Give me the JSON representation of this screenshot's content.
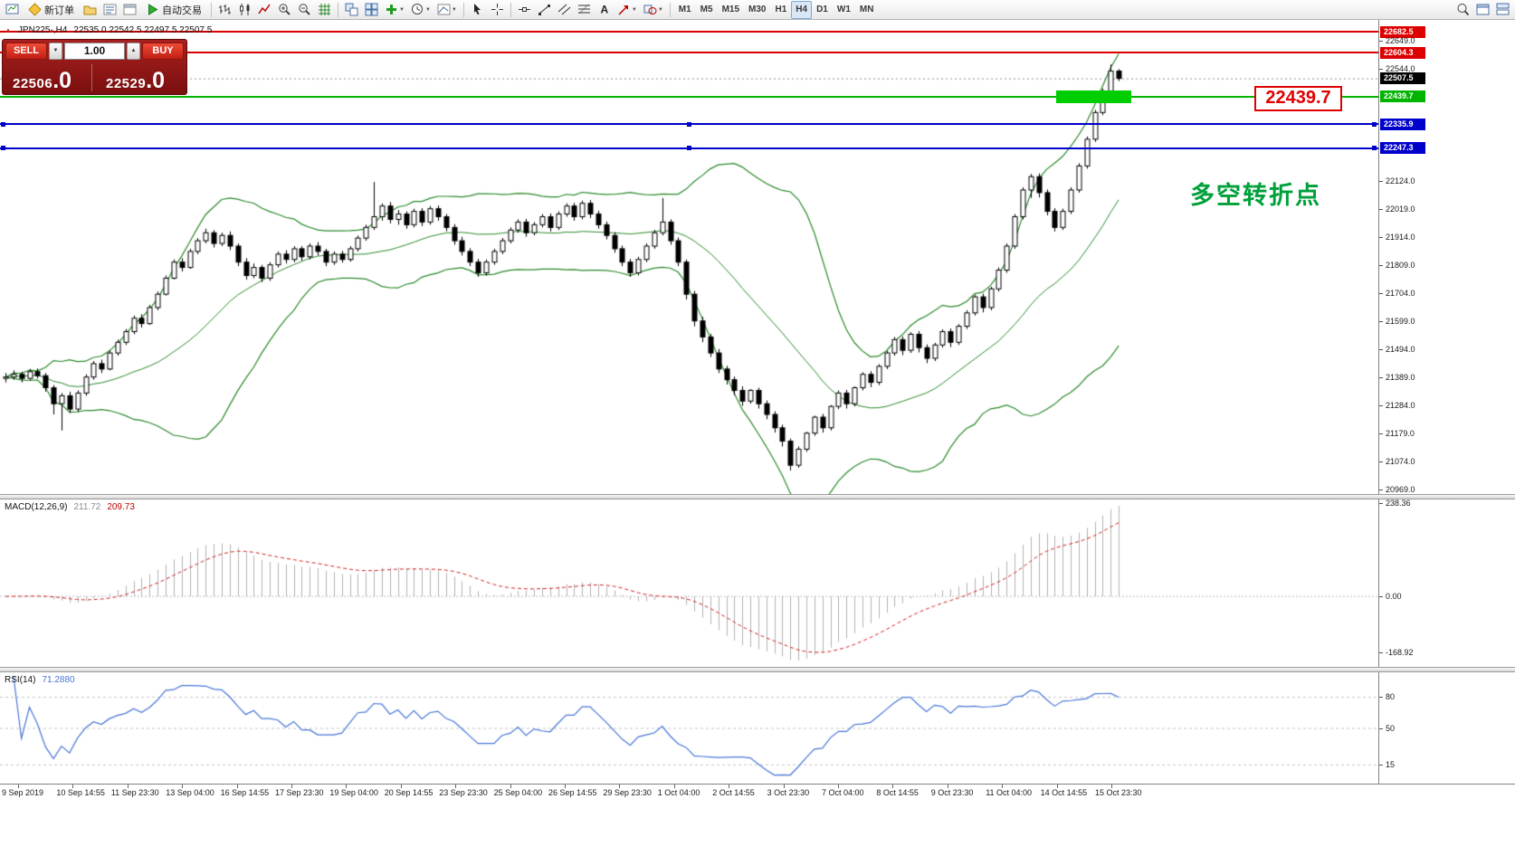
{
  "toolbar": {
    "items": [
      {
        "type": "icon",
        "name": "new-chart-icon"
      },
      {
        "type": "button",
        "name": "new-order-button",
        "icon": "new-order-icon",
        "label": "新订单"
      },
      {
        "type": "icon",
        "name": "profiles-icon"
      },
      {
        "type": "icon",
        "name": "market-watch-icon"
      },
      {
        "type": "icon",
        "name": "data-window-icon"
      },
      {
        "type": "button",
        "name": "autotrade-button",
        "icon": "autotrade-icon",
        "label": "自动交易"
      },
      {
        "type": "sep"
      },
      {
        "type": "icon",
        "name": "bar-chart-icon"
      },
      {
        "type": "icon",
        "name": "candlestick-icon"
      },
      {
        "type": "icon",
        "name": "line-chart-icon"
      },
      {
        "type": "icon",
        "name": "zoom-in-icon"
      },
      {
        "type": "icon",
        "name": "zoom-out-icon"
      },
      {
        "type": "icon",
        "name": "grid-icon"
      },
      {
        "type": "sep"
      },
      {
        "type": "icon",
        "name": "tile-windows-icon"
      },
      {
        "type": "icon",
        "name": "auto-arrange-icon"
      },
      {
        "type": "icon",
        "name": "add-indicator-icon",
        "dd": true
      },
      {
        "type": "icon",
        "name": "period-dropdown-icon",
        "dd": true
      },
      {
        "type": "icon",
        "name": "template-icon",
        "dd": true
      },
      {
        "type": "sep"
      },
      {
        "type": "icon",
        "name": "cursor-icon"
      },
      {
        "type": "icon",
        "name": "crosshair-icon"
      },
      {
        "type": "sep"
      },
      {
        "type": "icon",
        "name": "hline-tool-icon"
      },
      {
        "type": "icon",
        "name": "trendline-tool-icon"
      },
      {
        "type": "icon",
        "name": "channel-tool-icon"
      },
      {
        "type": "icon",
        "name": "fibonacci-tool-icon"
      },
      {
        "type": "icon",
        "name": "text-tool-icon"
      },
      {
        "type": "icon",
        "name": "arrow-tool-icon",
        "dd": true
      },
      {
        "type": "icon",
        "name": "shapes-tool-icon",
        "dd": true
      },
      {
        "type": "sep"
      },
      {
        "type": "tf"
      },
      {
        "type": "spacer"
      },
      {
        "type": "icon",
        "name": "search-icon"
      },
      {
        "type": "icon",
        "name": "new-window-icon"
      },
      {
        "type": "icon",
        "name": "window-list-icon"
      }
    ],
    "timeframes": [
      "M1",
      "M5",
      "M15",
      "M30",
      "H1",
      "H4",
      "D1",
      "W1",
      "MN"
    ],
    "active_timeframe": "H4"
  },
  "one_click": {
    "sell_label": "SELL",
    "buy_label": "BUY",
    "volume": "1.00",
    "volume_up_icon": "▲",
    "volume_down_icon": "▼",
    "sell_price_main": "22506",
    "sell_price_frac": ".0",
    "buy_price_main": "22529",
    "buy_price_frac": ".0"
  },
  "chart": {
    "toggle_icon": "▲",
    "title": "JPN225-,H4",
    "ohlc_text": "22535.0 22542.5 22497.5 22507.5",
    "annotation": "多空转折点",
    "level_label": "22439.7"
  },
  "chart_data": {
    "type": "candlestick",
    "symbol": "JPN225-",
    "timeframe": "H4",
    "current_price": 22507.5,
    "current_price_label": "22507.5",
    "price_axis": {
      "min": 20969.0,
      "max": 22682.5,
      "tick_step": 105,
      "ticks": [
        "22649.0",
        "22544.0",
        "22124.0",
        "22019.0",
        "21914.0",
        "21809.0",
        "21704.0",
        "21599.0",
        "21494.0",
        "21389.0",
        "21284.0",
        "21179.0",
        "21074.0",
        "20969.0"
      ]
    },
    "hlines": [
      {
        "price": 22682.5,
        "badge": "22682.5",
        "color": "#dd0000",
        "selected": false
      },
      {
        "price": 22604.3,
        "badge": "22604.3",
        "color": "#dd0000",
        "selected": false
      },
      {
        "price": 22439.7,
        "badge": "22439.7",
        "color": "#00b400",
        "selected": false
      },
      {
        "price": 22335.9,
        "badge": "22335.9",
        "color": "#0000cc",
        "selected": true
      },
      {
        "price": 22247.3,
        "badge": "22247.3",
        "color": "#0000cc",
        "selected": true
      }
    ],
    "bollinger": {
      "period": 20,
      "deviation": 2,
      "color": "#2a8a2a"
    },
    "candles": [
      [
        21385,
        21405,
        21370,
        21390
      ],
      [
        21390,
        21415,
        21380,
        21400
      ],
      [
        21400,
        21410,
        21370,
        21385
      ],
      [
        21385,
        21420,
        21378,
        21410
      ],
      [
        21410,
        21422,
        21385,
        21395
      ],
      [
        21395,
        21405,
        21335,
        21350
      ],
      [
        21350,
        21360,
        21250,
        21290
      ],
      [
        21290,
        21330,
        21190,
        21320
      ],
      [
        21320,
        21335,
        21255,
        21270
      ],
      [
        21270,
        21340,
        21260,
        21330
      ],
      [
        21330,
        21400,
        21320,
        21390
      ],
      [
        21390,
        21450,
        21380,
        21440
      ],
      [
        21440,
        21455,
        21405,
        21420
      ],
      [
        21420,
        21490,
        21415,
        21480
      ],
      [
        21480,
        21530,
        21470,
        21520
      ],
      [
        21520,
        21570,
        21510,
        21560
      ],
      [
        21560,
        21620,
        21550,
        21610
      ],
      [
        21610,
        21625,
        21575,
        21590
      ],
      [
        21590,
        21660,
        21585,
        21650
      ],
      [
        21650,
        21710,
        21640,
        21700
      ],
      [
        21700,
        21770,
        21695,
        21760
      ],
      [
        21760,
        21830,
        21755,
        21820
      ],
      [
        21820,
        21835,
        21785,
        21800
      ],
      [
        21800,
        21870,
        21795,
        21860
      ],
      [
        21860,
        21910,
        21850,
        21900
      ],
      [
        21900,
        21945,
        21890,
        21930
      ],
      [
        21930,
        21940,
        21875,
        21890
      ],
      [
        21890,
        21930,
        21880,
        21920
      ],
      [
        21920,
        21935,
        21865,
        21880
      ],
      [
        21880,
        21890,
        21805,
        21820
      ],
      [
        21820,
        21835,
        21755,
        21770
      ],
      [
        21770,
        21815,
        21760,
        21800
      ],
      [
        21800,
        21810,
        21745,
        21760
      ],
      [
        21760,
        21820,
        21750,
        21810
      ],
      [
        21810,
        21860,
        21800,
        21850
      ],
      [
        21850,
        21865,
        21815,
        21830
      ],
      [
        21830,
        21880,
        21820,
        21870
      ],
      [
        21870,
        21880,
        21825,
        21840
      ],
      [
        21840,
        21890,
        21830,
        21880
      ],
      [
        21880,
        21895,
        21845,
        21860
      ],
      [
        21860,
        21870,
        21805,
        21820
      ],
      [
        21820,
        21860,
        21810,
        21850
      ],
      [
        21850,
        21862,
        21818,
        21830
      ],
      [
        21830,
        21880,
        21822,
        21870
      ],
      [
        21870,
        21920,
        21860,
        21910
      ],
      [
        21910,
        21960,
        21900,
        21950
      ],
      [
        21950,
        22120,
        21940,
        21990
      ],
      [
        21990,
        22040,
        21975,
        22030
      ],
      [
        22030,
        22045,
        21965,
        21980
      ],
      [
        21980,
        22015,
        21960,
        22000
      ],
      [
        22000,
        22010,
        21945,
        21960
      ],
      [
        21960,
        22020,
        21950,
        22010
      ],
      [
        22010,
        22022,
        21955,
        21970
      ],
      [
        21970,
        22030,
        21960,
        22020
      ],
      [
        22020,
        22032,
        21975,
        21990
      ],
      [
        21990,
        22000,
        21935,
        21950
      ],
      [
        21950,
        21962,
        21885,
        21900
      ],
      [
        21900,
        21915,
        21845,
        21860
      ],
      [
        21860,
        21872,
        21805,
        21820
      ],
      [
        21820,
        21832,
        21765,
        21780
      ],
      [
        21780,
        21830,
        21770,
        21820
      ],
      [
        21820,
        21870,
        21810,
        21860
      ],
      [
        21860,
        21910,
        21850,
        21900
      ],
      [
        21900,
        21950,
        21890,
        21940
      ],
      [
        21940,
        21980,
        21930,
        21970
      ],
      [
        21970,
        21982,
        21915,
        21930
      ],
      [
        21930,
        21970,
        21920,
        21960
      ],
      [
        21960,
        22000,
        21950,
        21990
      ],
      [
        21990,
        22002,
        21935,
        21950
      ],
      [
        21950,
        22010,
        21940,
        22000
      ],
      [
        22000,
        22040,
        21990,
        22030
      ],
      [
        22030,
        22042,
        21975,
        21990
      ],
      [
        21990,
        22050,
        21980,
        22040
      ],
      [
        22040,
        22052,
        21985,
        22000
      ],
      [
        22000,
        22012,
        21945,
        21960
      ],
      [
        21960,
        21972,
        21905,
        21920
      ],
      [
        21920,
        21932,
        21855,
        21870
      ],
      [
        21870,
        21882,
        21805,
        21820
      ],
      [
        21820,
        21832,
        21765,
        21780
      ],
      [
        21780,
        21840,
        21770,
        21830
      ],
      [
        21830,
        21890,
        21820,
        21880
      ],
      [
        21880,
        21940,
        21870,
        21930
      ],
      [
        21930,
        22060,
        21920,
        21970
      ],
      [
        21970,
        21980,
        21885,
        21900
      ],
      [
        21900,
        21912,
        21805,
        21820
      ],
      [
        21820,
        21830,
        21680,
        21700
      ],
      [
        21700,
        21712,
        21580,
        21600
      ],
      [
        21600,
        21615,
        21520,
        21540
      ],
      [
        21540,
        21552,
        21465,
        21480
      ],
      [
        21480,
        21495,
        21405,
        21420
      ],
      [
        21420,
        21432,
        21362,
        21380
      ],
      [
        21380,
        21392,
        21322,
        21340
      ],
      [
        21340,
        21355,
        21282,
        21300
      ],
      [
        21300,
        21345,
        21290,
        21340
      ],
      [
        21340,
        21350,
        21272,
        21290
      ],
      [
        21290,
        21302,
        21232,
        21250
      ],
      [
        21250,
        21262,
        21182,
        21200
      ],
      [
        21200,
        21212,
        21130,
        21150
      ],
      [
        21150,
        21160,
        21040,
        21060
      ],
      [
        21060,
        21130,
        21050,
        21120
      ],
      [
        21120,
        21185,
        21110,
        21180
      ],
      [
        21180,
        21245,
        21170,
        21240
      ],
      [
        21240,
        21252,
        21182,
        21200
      ],
      [
        21200,
        21285,
        21190,
        21280
      ],
      [
        21280,
        21340,
        21270,
        21330
      ],
      [
        21330,
        21342,
        21272,
        21290
      ],
      [
        21290,
        21355,
        21280,
        21350
      ],
      [
        21350,
        21408,
        21340,
        21400
      ],
      [
        21400,
        21412,
        21352,
        21370
      ],
      [
        21370,
        21438,
        21360,
        21430
      ],
      [
        21430,
        21488,
        21420,
        21480
      ],
      [
        21480,
        21540,
        21470,
        21530
      ],
      [
        21530,
        21542,
        21472,
        21490
      ],
      [
        21490,
        21558,
        21480,
        21550
      ],
      [
        21550,
        21562,
        21482,
        21500
      ],
      [
        21500,
        21512,
        21442,
        21460
      ],
      [
        21460,
        21518,
        21450,
        21510
      ],
      [
        21510,
        21568,
        21500,
        21560
      ],
      [
        21560,
        21572,
        21502,
        21520
      ],
      [
        21520,
        21588,
        21510,
        21580
      ],
      [
        21580,
        21640,
        21570,
        21630
      ],
      [
        21630,
        21698,
        21620,
        21690
      ],
      [
        21690,
        21702,
        21632,
        21650
      ],
      [
        21650,
        21728,
        21640,
        21720
      ],
      [
        21720,
        21800,
        21710,
        21790
      ],
      [
        21790,
        21890,
        21780,
        21880
      ],
      [
        21880,
        22000,
        21870,
        21990
      ],
      [
        21990,
        22100,
        21980,
        22090
      ],
      [
        22090,
        22150,
        22060,
        22140
      ],
      [
        22140,
        22152,
        22062,
        22080
      ],
      [
        22080,
        22092,
        21995,
        22010
      ],
      [
        22010,
        22022,
        21935,
        21950
      ],
      [
        21950,
        22020,
        21940,
        22010
      ],
      [
        22010,
        22100,
        22000,
        22090
      ],
      [
        22090,
        22190,
        22080,
        22180
      ],
      [
        22180,
        22290,
        22170,
        22280
      ],
      [
        22280,
        22390,
        22270,
        22380
      ],
      [
        22380,
        22470,
        22370,
        22460
      ],
      [
        22460,
        22560,
        22450,
        22535
      ],
      [
        22535,
        22542.5,
        22497.5,
        22507.5
      ]
    ],
    "time_labels": [
      "9 Sep 2019",
      "10 Sep 14:55",
      "11 Sep 23:30",
      "13 Sep 04:00",
      "16 Sep 14:55",
      "17 Sep 23:30",
      "19 Sep 04:00",
      "20 Sep 14:55",
      "23 Sep 23:30",
      "25 Sep 04:00",
      "26 Sep 14:55",
      "29 Sep 23:30",
      "1 Oct 04:00",
      "2 Oct 14:55",
      "3 Oct 23:30",
      "7 Oct 04:00",
      "8 Oct 14:55",
      "9 Oct 23:30",
      "11 Oct 04:00",
      "14 Oct 14:55",
      "15 Oct 23:30"
    ],
    "macd": {
      "label": "MACD(12,26,9)",
      "main_value": "211.72",
      "signal_value": "209.73",
      "fast": 12,
      "slow": 26,
      "signal": 9,
      "axis_max": 238.36,
      "axis_min": -168.92,
      "axis_labels": [
        "238.36",
        "0.00",
        "-168.92"
      ]
    },
    "rsi": {
      "label": "RSI(14)",
      "value": "71.2880",
      "period": 14,
      "levels": [
        80,
        50,
        15
      ]
    }
  }
}
